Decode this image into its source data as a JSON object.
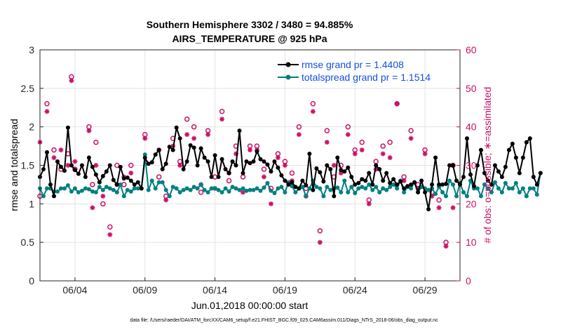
{
  "chart_data": {
    "type": "line",
    "title": "Southern Hemisphere 3302 / 3480 = 94.885%",
    "subtitle": "AIRS_TEMPERATURE @ 925 hPa",
    "xlabel": "Jun.01,2018 00:00:00 start",
    "ylabel_left": "rmse and totalspread",
    "ylabel_right": "# of obs: o=possible; ∗=assimilated",
    "footer": "data file: /Users/raeder/DAI/ATM_forcXX/CAM6_setup/f.e21.FHIST_BGC.f09_025.CAM6assim.011/Diags_NTrS_2018-06/obs_diag_output.nc",
    "xlim": [
      1.5,
      31.5
    ],
    "ylim_left": [
      0,
      3
    ],
    "ylim_right": [
      0,
      60
    ],
    "x_ticks": [
      4,
      9,
      14,
      19,
      24,
      29
    ],
    "x_tick_labels": [
      "06/04",
      "06/09",
      "06/14",
      "06/19",
      "06/24",
      "06/29"
    ],
    "y_ticks_left": [
      0,
      0.5,
      1,
      1.5,
      2,
      2.5,
      3
    ],
    "y_tick_labels_left": [
      "0",
      "0.5",
      "1",
      "1.5",
      "2",
      "2.5",
      "3"
    ],
    "y_ticks_right": [
      0,
      10,
      20,
      30,
      40,
      50,
      60
    ],
    "y_tick_labels_right": [
      "0",
      "10",
      "20",
      "30",
      "40",
      "50",
      "60"
    ],
    "grid": true,
    "legend_position": "top-right",
    "x_start": 1.5,
    "x_step": 0.25,
    "series": [
      {
        "name": "rmse grand pr = 1.4408",
        "color": "#000000",
        "axis": "left",
        "values": [
          1.35,
          1.45,
          1.67,
          1.25,
          1.1,
          1.55,
          1.48,
          1.43,
          1.99,
          1.5,
          1.44,
          1.39,
          1.5,
          1.35,
          1.6,
          1.48,
          1.38,
          1.28,
          1.36,
          1.42,
          1.5,
          1.31,
          1.25,
          1.48,
          1.33,
          1.34,
          1.3,
          1.25,
          1.28,
          1.2,
          1.6,
          1.52,
          1.54,
          1.64,
          1.7,
          1.45,
          1.52,
          1.74,
          1.7,
          1.99,
          1.85,
          1.45,
          1.55,
          1.76,
          1.73,
          1.5,
          1.72,
          1.6,
          1.55,
          1.35,
          1.63,
          1.35,
          1.58,
          1.45,
          1.4,
          1.55,
          1.5,
          1.95,
          1.4,
          1.55,
          1.53,
          1.55,
          1.68,
          1.58,
          1.55,
          1.51,
          1.42,
          1.55,
          1.47,
          1.37,
          1.3,
          1.25,
          1.28,
          1.22,
          1.2,
          1.3,
          1.24,
          1.65,
          1.18,
          1.46,
          1.41,
          1.29,
          1.5,
          1.45,
          1.1,
          1.6,
          1.44,
          1.42,
          1.47,
          1.35,
          1.25,
          1.27,
          1.32,
          1.3,
          1.4,
          1.25,
          1.5,
          1.45,
          1.3,
          1.4,
          1.27,
          1.32,
          1.25,
          1.29,
          1.2,
          1.23,
          1.25,
          1.28,
          1.15,
          1.3,
          1.15,
          0.93,
          1.25,
          1.6,
          1.25,
          1.25,
          1.26,
          1.5,
          1.5,
          1.3,
          1.25,
          1.35,
          1.85,
          1.38,
          1.23,
          1.5,
          1.7,
          1.4,
          1.3,
          1.25,
          1.5,
          1.42,
          1.35,
          1.48,
          1.7,
          1.78,
          1.6,
          1.4,
          1.6,
          1.8,
          1.85,
          1.35,
          1.25,
          1.4
        ]
      },
      {
        "name": "totalspread grand pr = 1.1514",
        "color": "#008080",
        "axis": "left",
        "values": [
          1.2,
          1.1,
          1.2,
          1.2,
          1.16,
          1.16,
          1.2,
          1.2,
          1.24,
          1.16,
          1.2,
          1.15,
          1.17,
          1.2,
          1.19,
          1.16,
          1.15,
          1.22,
          1.18,
          1.22,
          1.2,
          1.18,
          1.15,
          1.25,
          1.1,
          1.18,
          1.16,
          1.2,
          1.2,
          1.2,
          1.64,
          1.18,
          1.3,
          1.2,
          1.28,
          1.28,
          1.18,
          1.1,
          1.22,
          1.2,
          1.15,
          1.18,
          1.2,
          1.18,
          1.22,
          1.2,
          1.25,
          1.18,
          1.15,
          1.2,
          1.2,
          1.18,
          1.15,
          1.2,
          1.16,
          1.22,
          1.2,
          1.18,
          1.2,
          1.17,
          1.18,
          1.18,
          1.2,
          1.17,
          1.21,
          1.27,
          1.17,
          1.14,
          1.2,
          1.22,
          1.15,
          1.28,
          1.23,
          1.15,
          1.2,
          1.22,
          1.1,
          1.2,
          1.3,
          1.22,
          1.2,
          1.1,
          1.22,
          1.18,
          1.2,
          1.21,
          1.15,
          1.3,
          1.15,
          1.22,
          1.14,
          1.2,
          1.22,
          1.2,
          1.25,
          1.18,
          1.22,
          1.15,
          1.2,
          1.18,
          1.22,
          1.25,
          1.2,
          1.3,
          1.15,
          1.22,
          1.2,
          1.28,
          1.15,
          1.22,
          1.2,
          1.18,
          1.2,
          1.13,
          1.22,
          1.15,
          1.1,
          1.3,
          1.25,
          1.1,
          1.27,
          1.15,
          1.1,
          1.3,
          1.2,
          1.2,
          1.1,
          1.25,
          1.2,
          1.15,
          1.28,
          1.2,
          1.15,
          1.27,
          1.2,
          1.2,
          1.27,
          1.15,
          1.2,
          1.1,
          1.2,
          1.2,
          1.12,
          1.4
        ]
      },
      {
        "name": "# of obs possible",
        "color": "#cc1166",
        "axis": "right",
        "marker": "o",
        "x": [
          1.5,
          2.0,
          2.5,
          3.0,
          3.5,
          3.75,
          4.0,
          5.0,
          5.25,
          5.5,
          6.0,
          6.5,
          7.0,
          7.5,
          8.0,
          9.0,
          10.0,
          10.5,
          11.0,
          11.5,
          12.0,
          12.5,
          13.0,
          13.5,
          14.0,
          14.5,
          15.0,
          15.5,
          16.0,
          16.5,
          17.0,
          17.5,
          18.0,
          18.5,
          19.0,
          19.5,
          20.0,
          20.5,
          21.0,
          21.5,
          22.0,
          22.5,
          23.0,
          23.5,
          24.0,
          24.5,
          25.0,
          25.5,
          26.0,
          26.5,
          27.0,
          27.5,
          28.0,
          28.5,
          29.0,
          29.5,
          30.0,
          30.5,
          31.0
        ],
        "values": [
          22,
          46,
          34,
          29,
          33,
          53,
          29,
          40,
          25,
          36,
          20,
          14,
          30,
          25,
          30,
          38,
          27,
          22,
          37,
          31,
          42,
          40,
          23,
          39,
          27,
          44,
          26,
          35,
          27,
          35,
          35,
          29,
          24,
          33,
          31,
          28,
          40,
          24,
          46,
          13,
          39,
          27,
          30,
          40,
          34,
          36,
          21,
          31,
          35,
          36,
          46,
          27,
          39,
          25,
          34,
          23,
          21,
          10,
          30
        ]
      },
      {
        "name": "# of obs assimilated",
        "color": "#cc1166",
        "axis": "right",
        "marker": "*",
        "x": [
          1.5,
          2.0,
          2.5,
          3.0,
          3.5,
          3.75,
          4.0,
          5.0,
          5.25,
          5.5,
          6.0,
          6.5,
          7.0,
          7.5,
          8.0,
          9.0,
          10.0,
          10.5,
          11.0,
          11.5,
          12.0,
          12.5,
          13.0,
          13.5,
          14.0,
          14.5,
          15.0,
          15.5,
          16.0,
          16.5,
          17.0,
          17.5,
          18.0,
          18.5,
          19.0,
          19.5,
          20.0,
          20.5,
          21.0,
          21.5,
          22.0,
          22.5,
          23.0,
          23.5,
          24.0,
          24.5,
          25.0,
          25.5,
          26.0,
          26.5,
          27.0,
          27.5,
          28.0,
          28.5,
          29.0,
          29.5,
          30.0,
          30.5,
          31.0
        ],
        "values": [
          36,
          44,
          32,
          34,
          30,
          52,
          31,
          39,
          19,
          30,
          22,
          12,
          25,
          27,
          28,
          37,
          34,
          21,
          35,
          30,
          38,
          37,
          25,
          38,
          24,
          42,
          28,
          33,
          23,
          34,
          34,
          27,
          20,
          32,
          30,
          26,
          38,
          22,
          44,
          10,
          36,
          30,
          28,
          38,
          33,
          34,
          20,
          29,
          33,
          32,
          46,
          26,
          37,
          24,
          33,
          22,
          19,
          9,
          19
        ]
      }
    ]
  }
}
